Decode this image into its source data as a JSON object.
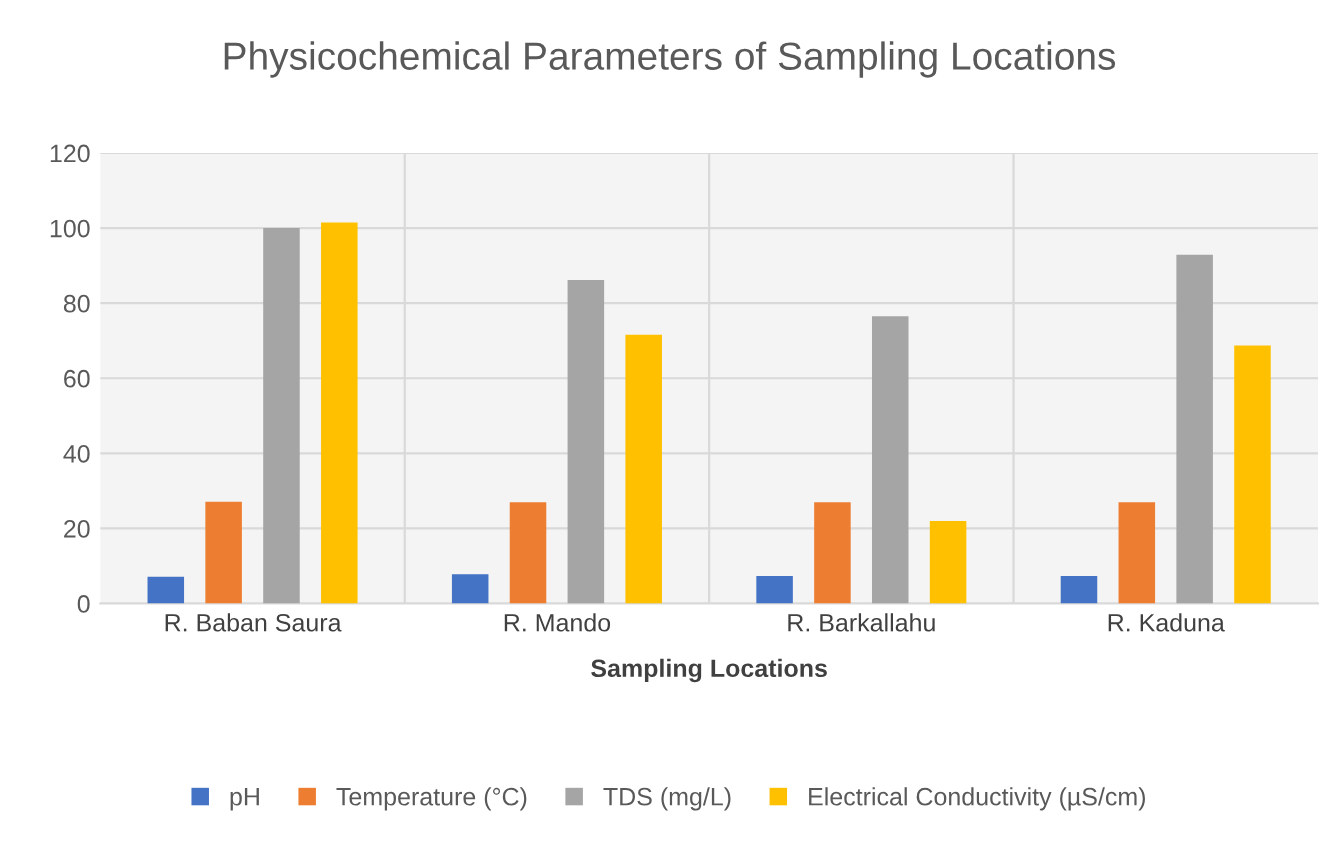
{
  "chart_data": {
    "type": "bar",
    "title": "Physicochemical Parameters of Sampling Locations",
    "xlabel": "Sampling Locations",
    "categories": [
      "R. Baban Saura",
      "R. Mando",
      "R. Barkallahu",
      "R. Kaduna"
    ],
    "series": [
      {
        "name": "pH",
        "color": "#4472c4",
        "values": [
          7.1,
          7.8,
          7.3,
          7.3
        ]
      },
      {
        "name": "Temperature (°C)",
        "color": "#ed7d31",
        "values": [
          27.1,
          27,
          27,
          27
        ]
      },
      {
        "name": "TDS (mg/L)",
        "color": "#a5a5a5",
        "values": [
          100,
          86.2,
          76.5,
          92.9
        ]
      },
      {
        "name": "Electrical Conductivity (µS/cm)",
        "color": "#ffc000",
        "values": [
          101.5,
          71.6,
          22,
          68.7
        ]
      }
    ],
    "ylim": [
      0,
      120
    ],
    "yticks": [
      0,
      20,
      40,
      60,
      80,
      100,
      120
    ],
    "grid": true,
    "legend": "bottom"
  }
}
